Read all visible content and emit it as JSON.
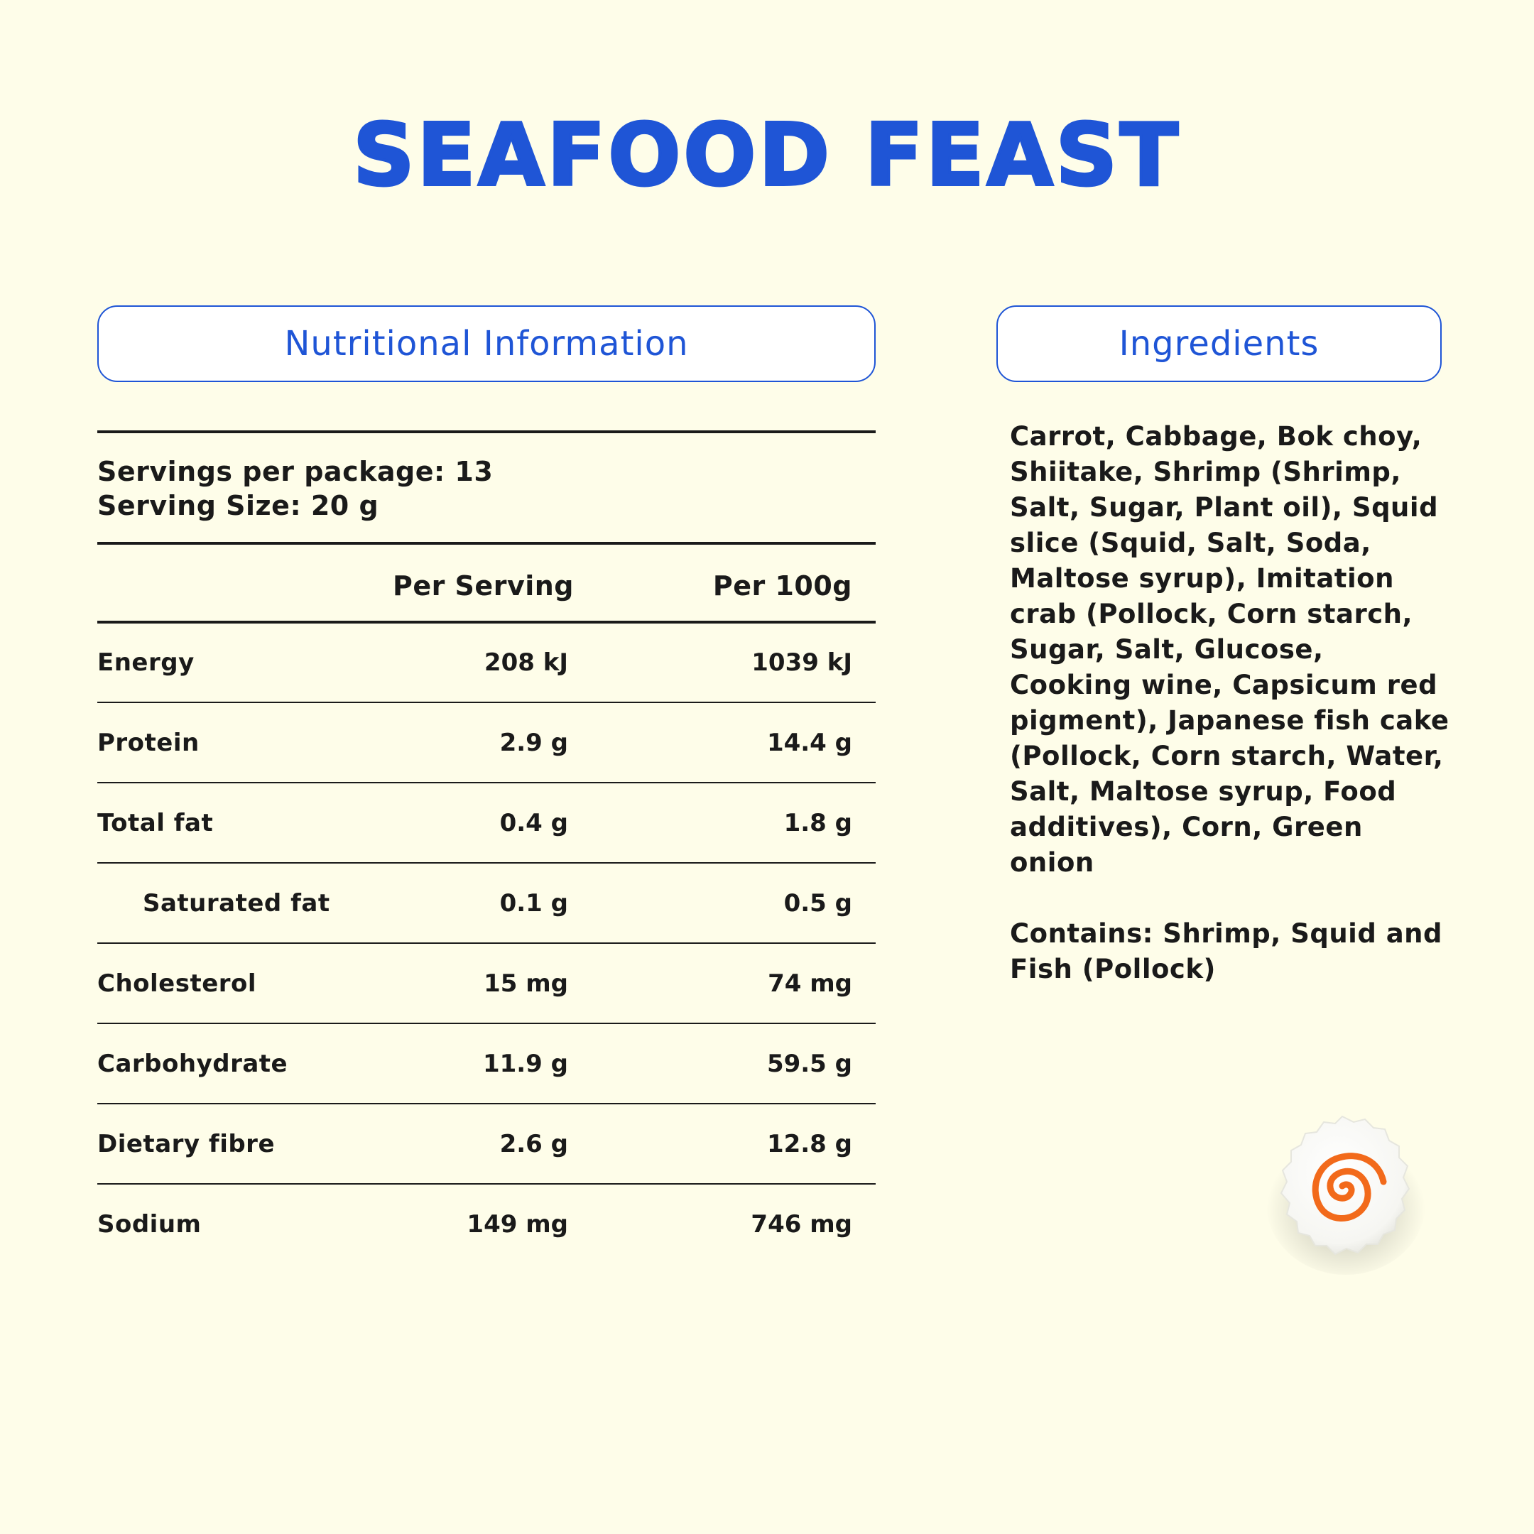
{
  "title": "SEAFOOD FEAST",
  "nutrition": {
    "heading": "Nutritional Information",
    "servings_per_package": "Servings per package: 13",
    "serving_size": "Serving Size: 20 g",
    "col_per_serving": "Per Serving",
    "col_per_100g": "Per 100g",
    "rows": [
      {
        "name": "Energy",
        "per_serving": "208 kJ",
        "per_100g": "1039 kJ"
      },
      {
        "name": "Protein",
        "per_serving": "2.9 g",
        "per_100g": "14.4 g"
      },
      {
        "name": "Total fat",
        "per_serving": "0.4 g",
        "per_100g": "1.8 g"
      },
      {
        "name": "Saturated fat",
        "per_serving": "0.1 g",
        "per_100g": "0.5 g"
      },
      {
        "name": "Cholesterol",
        "per_serving": "15 mg",
        "per_100g": "74 mg"
      },
      {
        "name": "Carbohydrate",
        "per_serving": "11.9 g",
        "per_100g": "59.5 g"
      },
      {
        "name": "Dietary fibre",
        "per_serving": "2.6 g",
        "per_100g": "12.8 g"
      },
      {
        "name": "Sodium",
        "per_serving": "149 mg",
        "per_100g": "746 mg"
      }
    ]
  },
  "ingredients": {
    "heading": "Ingredients",
    "list": "Carrot, Cabbage, Bok choy, Shiitake, Shrimp (Shrimp, Salt, Sugar, Plant oil), Squid slice (Squid, Salt, Soda, Maltose syrup), Imitation crab (Pollock, Corn starch, Sugar, Salt, Glucose, Cooking wine, Capsicum red pigment), Japanese fish cake (Pollock, Corn starch, Water, Salt, Maltose syrup, Food additives), Corn, Green onion",
    "contains": "Contains: Shrimp, Squid and Fish (Pollock)"
  },
  "colors": {
    "background": "#fefde9",
    "accent": "#1f55d6",
    "swirl": "#f26a1b"
  },
  "icons": {
    "decoration": "fish-cake-icon"
  }
}
